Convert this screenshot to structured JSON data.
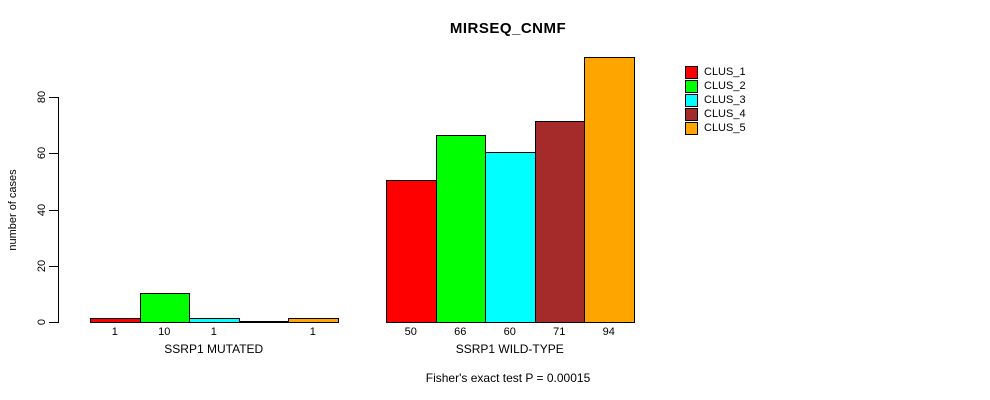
{
  "chart_data": {
    "type": "bar",
    "title": "MIRSEQ_CNMF",
    "ylabel": "number of cases",
    "xlabel": "",
    "ylim": [
      0,
      94
    ],
    "yticks": [
      0,
      20,
      40,
      60,
      80
    ],
    "grid": false,
    "legend_position": "right",
    "legend": [
      {
        "name": "CLUS_1",
        "color": "#FF0000"
      },
      {
        "name": "CLUS_2",
        "color": "#00FF00"
      },
      {
        "name": "CLUS_3",
        "color": "#00FFFF"
      },
      {
        "name": "CLUS_4",
        "color": "#A52A2A"
      },
      {
        "name": "CLUS_5",
        "color": "#FFA500"
      }
    ],
    "groups": [
      {
        "label": "SSRP1 MUTATED",
        "series": [
          "CLUS_1",
          "CLUS_2",
          "CLUS_3",
          "CLUS_4",
          "CLUS_5"
        ],
        "values": [
          1,
          10,
          1,
          0,
          1
        ],
        "bar_labels": [
          "1",
          "10",
          "1",
          "",
          "1"
        ]
      },
      {
        "label": "SSRP1 WILD-TYPE",
        "series": [
          "CLUS_1",
          "CLUS_2",
          "CLUS_3",
          "CLUS_4",
          "CLUS_5"
        ],
        "values": [
          50,
          66,
          60,
          71,
          94
        ],
        "bar_labels": [
          "50",
          "66",
          "60",
          "71",
          "94"
        ]
      }
    ],
    "annotation": "Fisher's exact test P = 0.00015"
  },
  "colors": {
    "background": "#FFFFFF",
    "axis": "#000000",
    "text": "#000000"
  }
}
